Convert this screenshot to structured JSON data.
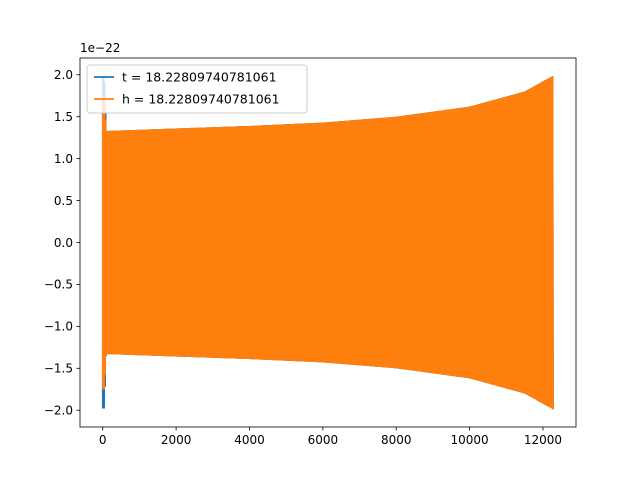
{
  "chart_data": {
    "type": "line",
    "title": "",
    "xlabel": "",
    "ylabel": "",
    "offset_text": "1e−22",
    "xlim": [
      -620,
      12900
    ],
    "ylim": [
      -2.2,
      2.2
    ],
    "x_ticks": [
      0,
      2000,
      4000,
      6000,
      8000,
      10000,
      12000
    ],
    "x_tick_labels": [
      "0",
      "2000",
      "4000",
      "6000",
      "8000",
      "10000",
      "12000"
    ],
    "y_ticks": [
      -2.0,
      -1.5,
      -1.0,
      -0.5,
      0.0,
      0.5,
      1.0,
      1.5,
      2.0
    ],
    "y_tick_labels": [
      "−2.0",
      "−1.5",
      "−1.0",
      "−0.5",
      "0.0",
      "0.5",
      "1.0",
      "1.5",
      "2.0"
    ],
    "grid": false,
    "legend_position": "top-left",
    "series": [
      {
        "name": "t = 18.22809740781061",
        "color": "#1f77b4",
        "x_range": [
          0,
          12288
        ],
        "envelope": {
          "x": [
            0,
            50,
            100,
            2000,
            4000,
            6000,
            8000,
            10000,
            11500,
            12288
          ],
          "amplitude": [
            1.98,
            1.98,
            1.33,
            1.36,
            1.39,
            1.43,
            1.5,
            1.62,
            1.8,
            1.99
          ]
        },
        "spike_at_start": true
      },
      {
        "name": "h = 18.22809740781061",
        "color": "#ff7f0e",
        "x_range": [
          0,
          12288
        ],
        "envelope": {
          "x": [
            0,
            50,
            100,
            2000,
            4000,
            6000,
            8000,
            10000,
            11500,
            12288
          ],
          "amplitude": [
            1.75,
            1.75,
            1.33,
            1.36,
            1.39,
            1.43,
            1.5,
            1.62,
            1.8,
            1.99
          ]
        },
        "spike_at_start": true
      }
    ]
  }
}
